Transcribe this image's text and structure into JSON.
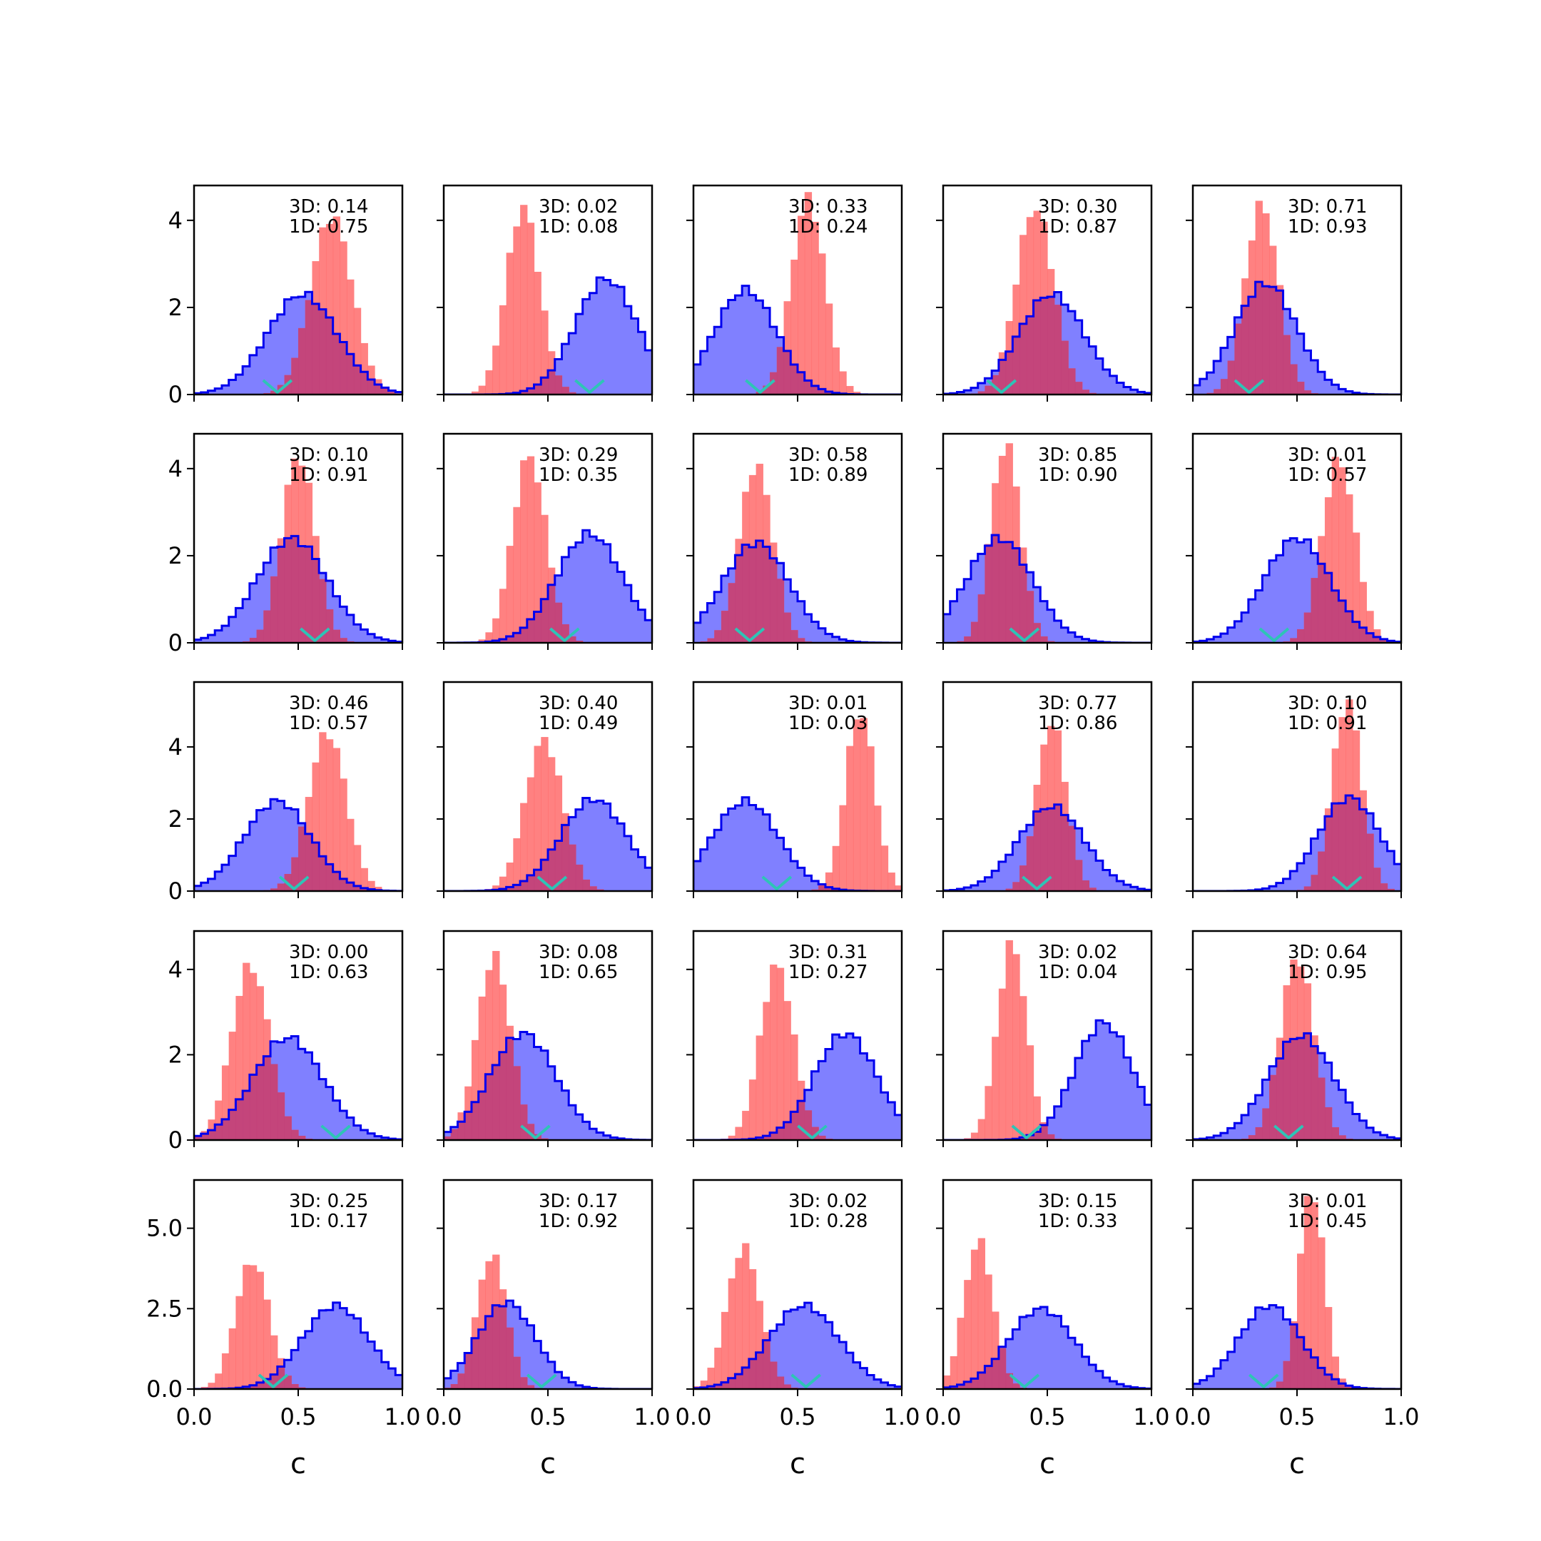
{
  "chart_data": {
    "type": "histogram-grid",
    "rows": 5,
    "cols": 5,
    "xlabel": "c",
    "xlim": [
      0.0,
      1.0
    ],
    "x_ticks": [
      "0.0",
      "0.5",
      "1.0"
    ],
    "row_ylims": [
      [
        0,
        4.8
      ],
      [
        0,
        4.8
      ],
      [
        0,
        5.8
      ],
      [
        0,
        4.9
      ],
      [
        0,
        6.5
      ]
    ],
    "row_yticks": [
      [
        "0",
        "2",
        "4"
      ],
      [
        "0",
        "2",
        "4"
      ],
      [
        "0",
        "2",
        "4"
      ],
      [
        "0",
        "2",
        "4"
      ],
      [
        "0.0",
        "2.5",
        "5.0"
      ]
    ],
    "series_colors": {
      "blue": "#0000ee",
      "blue_fill": "#8080ff",
      "red": "#ff6b6b",
      "overlap": "#c0407a",
      "marker": "#2ec4b6"
    },
    "panels": [
      {
        "row": 0,
        "col": 0,
        "label3d": "3D: 0.14",
        "label1d": "1D: 0.75",
        "blue": {
          "mu": 0.52,
          "sd": 0.17,
          "peak": 2.3
        },
        "red": {
          "mu": 0.66,
          "sd": 0.1,
          "peak": 4.1
        },
        "marker": 0.4
      },
      {
        "row": 0,
        "col": 1,
        "label3d": "3D: 0.02",
        "label1d": "1D: 0.08",
        "blue": {
          "mu": 0.78,
          "sd": 0.15,
          "peak": 2.65
        },
        "red": {
          "mu": 0.38,
          "sd": 0.08,
          "peak": 4.3
        },
        "marker": 0.7
      },
      {
        "row": 0,
        "col": 2,
        "label3d": "3D: 0.33",
        "label1d": "1D: 0.24",
        "blue": {
          "mu": 0.25,
          "sd": 0.15,
          "peak": 2.4
        },
        "red": {
          "mu": 0.55,
          "sd": 0.08,
          "peak": 4.5
        },
        "marker": 0.32
      },
      {
        "row": 0,
        "col": 3,
        "label3d": "3D: 0.30",
        "label1d": "1D: 0.87",
        "blue": {
          "mu": 0.52,
          "sd": 0.16,
          "peak": 2.3
        },
        "red": {
          "mu": 0.44,
          "sd": 0.09,
          "peak": 4.3
        },
        "marker": 0.28
      },
      {
        "row": 0,
        "col": 4,
        "label3d": "3D: 0.71",
        "label1d": "1D: 0.93",
        "blue": {
          "mu": 0.35,
          "sd": 0.15,
          "peak": 2.55
        },
        "red": {
          "mu": 0.33,
          "sd": 0.08,
          "peak": 4.35
        },
        "marker": 0.27
      },
      {
        "row": 1,
        "col": 0,
        "label3d": "3D: 0.10",
        "label1d": "1D: 0.91",
        "blue": {
          "mu": 0.47,
          "sd": 0.17,
          "peak": 2.4
        },
        "red": {
          "mu": 0.5,
          "sd": 0.08,
          "peak": 4.3
        },
        "marker": 0.58
      },
      {
        "row": 1,
        "col": 1,
        "label3d": "3D: 0.29",
        "label1d": "1D: 0.35",
        "blue": {
          "mu": 0.7,
          "sd": 0.16,
          "peak": 2.5
        },
        "red": {
          "mu": 0.41,
          "sd": 0.08,
          "peak": 4.3
        },
        "marker": 0.58
      },
      {
        "row": 1,
        "col": 2,
        "label3d": "3D: 0.58",
        "label1d": "1D: 0.89",
        "blue": {
          "mu": 0.3,
          "sd": 0.16,
          "peak": 2.3
        },
        "red": {
          "mu": 0.3,
          "sd": 0.08,
          "peak": 4.1
        },
        "marker": 0.27
      },
      {
        "row": 1,
        "col": 3,
        "label3d": "3D: 0.85",
        "label1d": "1D: 0.90",
        "blue": {
          "mu": 0.27,
          "sd": 0.16,
          "peak": 2.4
        },
        "red": {
          "mu": 0.3,
          "sd": 0.07,
          "peak": 4.6
        },
        "marker": 0.39
      },
      {
        "row": 1,
        "col": 4,
        "label3d": "3D: 0.01",
        "label1d": "1D: 0.57",
        "blue": {
          "mu": 0.5,
          "sd": 0.16,
          "peak": 2.4
        },
        "red": {
          "mu": 0.7,
          "sd": 0.08,
          "peak": 4.2
        },
        "marker": 0.39
      },
      {
        "row": 2,
        "col": 0,
        "label3d": "3D: 0.46",
        "label1d": "1D: 0.57",
        "blue": {
          "mu": 0.4,
          "sd": 0.16,
          "peak": 2.5
        },
        "red": {
          "mu": 0.64,
          "sd": 0.09,
          "peak": 4.4
        },
        "marker": 0.48
      },
      {
        "row": 2,
        "col": 1,
        "label3d": "3D: 0.40",
        "label1d": "1D: 0.49",
        "blue": {
          "mu": 0.72,
          "sd": 0.16,
          "peak": 2.55
        },
        "red": {
          "mu": 0.48,
          "sd": 0.09,
          "peak": 4.2
        },
        "marker": 0.52
      },
      {
        "row": 2,
        "col": 2,
        "label3d": "3D: 0.01",
        "label1d": "1D: 0.03",
        "blue": {
          "mu": 0.25,
          "sd": 0.16,
          "peak": 2.5
        },
        "red": {
          "mu": 0.8,
          "sd": 0.07,
          "peak": 5.0
        },
        "marker": 0.4
      },
      {
        "row": 2,
        "col": 3,
        "label3d": "3D: 0.77",
        "label1d": "1D: 0.86",
        "blue": {
          "mu": 0.52,
          "sd": 0.16,
          "peak": 2.35
        },
        "red": {
          "mu": 0.52,
          "sd": 0.07,
          "peak": 4.7
        },
        "marker": 0.45
      },
      {
        "row": 2,
        "col": 4,
        "label3d": "3D: 0.10",
        "label1d": "1D: 0.91",
        "blue": {
          "mu": 0.75,
          "sd": 0.15,
          "peak": 2.6
        },
        "red": {
          "mu": 0.74,
          "sd": 0.07,
          "peak": 5.3
        },
        "marker": 0.74
      },
      {
        "row": 3,
        "col": 0,
        "label3d": "3D: 0.00",
        "label1d": "1D: 0.63",
        "blue": {
          "mu": 0.45,
          "sd": 0.17,
          "peak": 2.4
        },
        "red": {
          "mu": 0.27,
          "sd": 0.09,
          "peak": 4.1
        },
        "marker": 0.68
      },
      {
        "row": 3,
        "col": 1,
        "label3d": "3D: 0.08",
        "label1d": "1D: 0.65",
        "blue": {
          "mu": 0.38,
          "sd": 0.16,
          "peak": 2.5
        },
        "red": {
          "mu": 0.24,
          "sd": 0.08,
          "peak": 4.3
        },
        "marker": 0.44
      },
      {
        "row": 3,
        "col": 2,
        "label3d": "3D: 0.31",
        "label1d": "1D: 0.27",
        "blue": {
          "mu": 0.73,
          "sd": 0.15,
          "peak": 2.5
        },
        "red": {
          "mu": 0.4,
          "sd": 0.08,
          "peak": 4.1
        },
        "marker": 0.57
      },
      {
        "row": 3,
        "col": 3,
        "label3d": "3D: 0.02",
        "label1d": "1D: 0.04",
        "blue": {
          "mu": 0.77,
          "sd": 0.14,
          "peak": 2.75
        },
        "red": {
          "mu": 0.33,
          "sd": 0.07,
          "peak": 4.6
        },
        "marker": 0.4
      },
      {
        "row": 3,
        "col": 4,
        "label3d": "3D: 0.64",
        "label1d": "1D: 0.95",
        "blue": {
          "mu": 0.52,
          "sd": 0.16,
          "peak": 2.45
        },
        "red": {
          "mu": 0.5,
          "sd": 0.08,
          "peak": 4.3
        },
        "marker": 0.46
      },
      {
        "row": 4,
        "col": 0,
        "label3d": "3D: 0.25",
        "label1d": "1D: 0.17",
        "blue": {
          "mu": 0.68,
          "sd": 0.16,
          "peak": 2.6
        },
        "red": {
          "mu": 0.28,
          "sd": 0.08,
          "peak": 4.0
        },
        "marker": 0.38
      },
      {
        "row": 4,
        "col": 1,
        "label3d": "3D: 0.17",
        "label1d": "1D: 0.92",
        "blue": {
          "mu": 0.3,
          "sd": 0.14,
          "peak": 2.7
        },
        "red": {
          "mu": 0.23,
          "sd": 0.07,
          "peak": 4.2
        },
        "marker": 0.47
      },
      {
        "row": 4,
        "col": 2,
        "label3d": "3D: 0.02",
        "label1d": "1D: 0.28",
        "blue": {
          "mu": 0.53,
          "sd": 0.17,
          "peak": 2.6
        },
        "red": {
          "mu": 0.24,
          "sd": 0.08,
          "peak": 4.4
        },
        "marker": 0.54
      },
      {
        "row": 4,
        "col": 3,
        "label3d": "3D: 0.15",
        "label1d": "1D: 0.33",
        "blue": {
          "mu": 0.47,
          "sd": 0.16,
          "peak": 2.5
        },
        "red": {
          "mu": 0.17,
          "sd": 0.07,
          "peak": 4.6
        },
        "marker": 0.39
      },
      {
        "row": 4,
        "col": 4,
        "label3d": "3D: 0.01",
        "label1d": "1D: 0.45",
        "blue": {
          "mu": 0.37,
          "sd": 0.15,
          "peak": 2.6
        },
        "red": {
          "mu": 0.57,
          "sd": 0.06,
          "peak": 6.2
        },
        "marker": 0.34
      }
    ]
  }
}
